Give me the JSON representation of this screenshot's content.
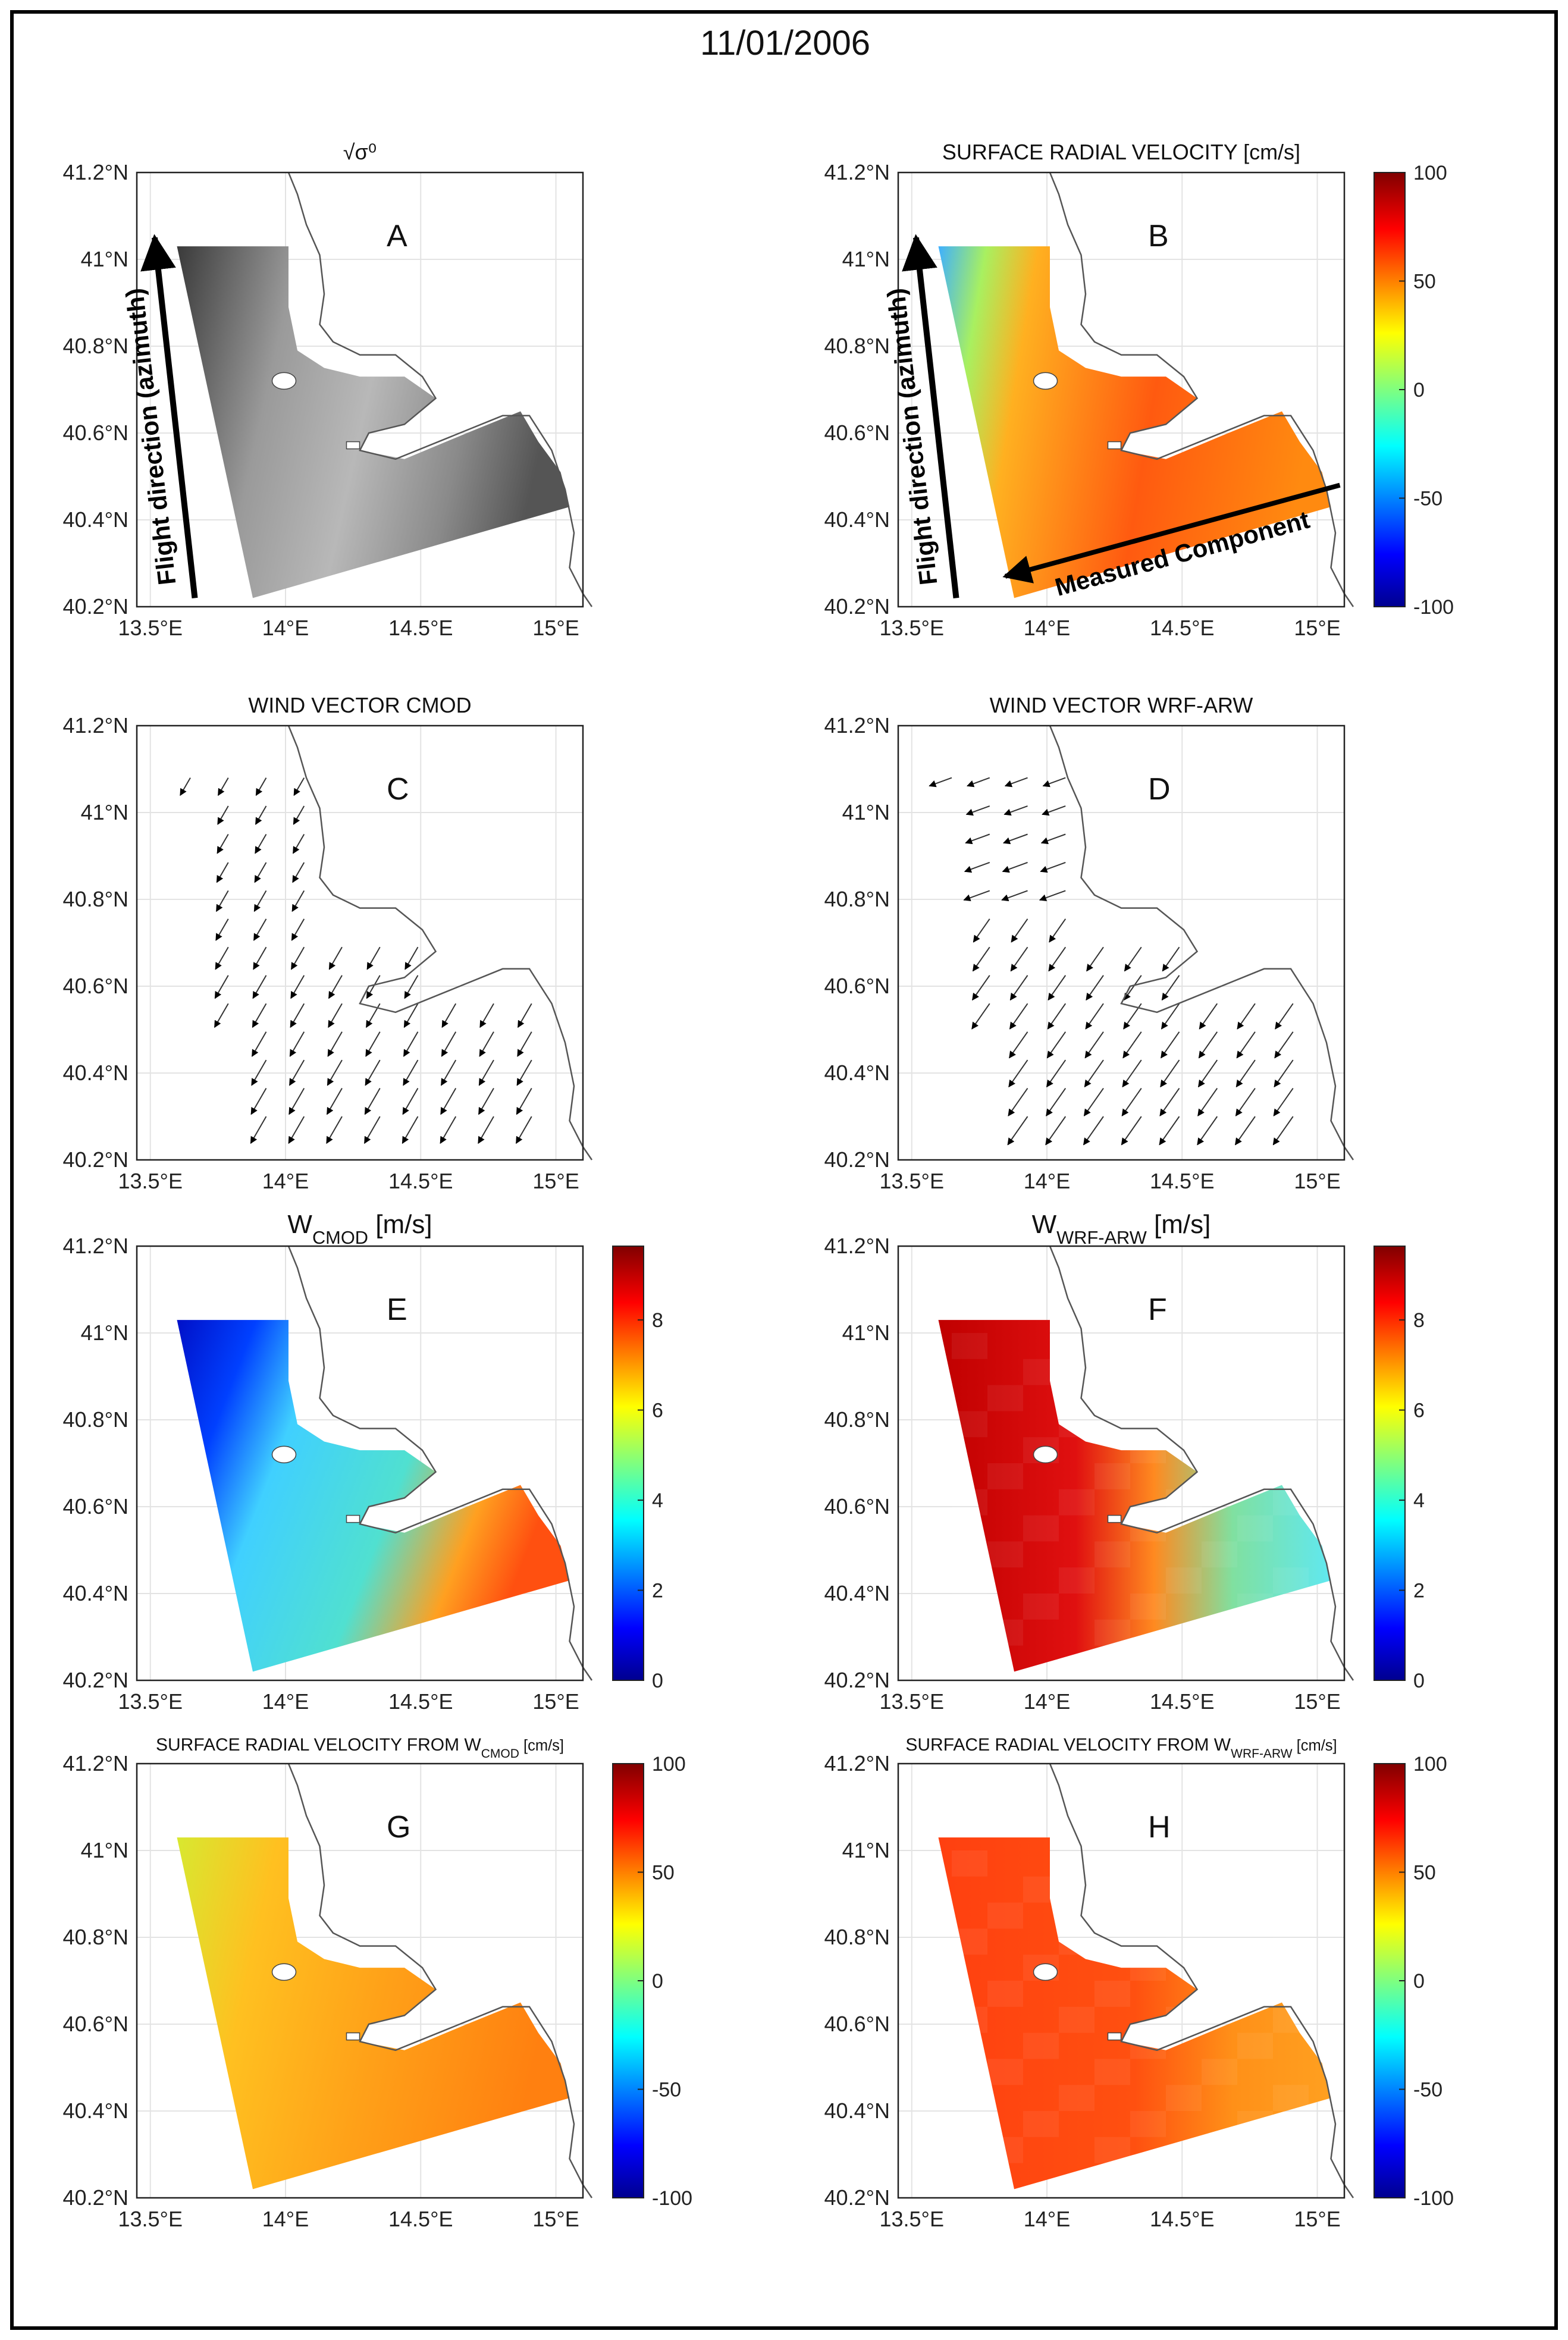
{
  "figure": {
    "date": "11/01/2006",
    "sigma_title": "√σ⁰",
    "flight_label": "Flight direction (azimuth)",
    "measured_label": "Measured Component"
  },
  "chart_data": [
    {
      "id": "A",
      "type": "heatmap",
      "letter": "A",
      "title": "√σ⁰",
      "title_sub": "",
      "title_unit": "",
      "colormap": "gray",
      "xticks": [
        "13.5°E",
        "14°E",
        "14.5°E",
        "15°E"
      ],
      "yticks": [
        "40.2°N",
        "40.4°N",
        "40.6°N",
        "40.8°N",
        "41°N",
        "41.2°N"
      ],
      "xlim": [
        13.45,
        15.1
      ],
      "ylim": [
        40.2,
        41.2
      ]
    },
    {
      "id": "B",
      "type": "heatmap",
      "letter": "B",
      "title": "SURFACE RADIAL VELOCITY [cm/s]",
      "title_sub": "",
      "title_unit": "",
      "colormap": "jet",
      "colorbar": {
        "ticks": [
          "100",
          "50",
          "0",
          "-50",
          "-100"
        ],
        "range": [
          -100,
          100
        ]
      },
      "xticks": [
        "13.5°E",
        "14°E",
        "14.5°E",
        "15°E"
      ],
      "yticks": [
        "40.2°N",
        "40.4°N",
        "40.6°N",
        "40.8°N",
        "41°N",
        "41.2°N"
      ],
      "xlim": [
        13.45,
        15.1
      ],
      "ylim": [
        40.2,
        41.2
      ]
    },
    {
      "id": "C",
      "type": "scatter",
      "letter": "C",
      "title": "WIND VECTOR CMOD",
      "title_sub": "",
      "title_unit": "",
      "xticks": [
        "13.5°E",
        "14°E",
        "14.5°E",
        "15°E"
      ],
      "yticks": [
        "40.2°N",
        "40.4°N",
        "40.6°N",
        "40.8°N",
        "41°N",
        "41.2°N"
      ],
      "xlim": [
        13.45,
        15.1
      ],
      "ylim": [
        40.2,
        41.2
      ]
    },
    {
      "id": "D",
      "type": "scatter",
      "letter": "D",
      "title": "WIND VECTOR WRF-ARW",
      "title_sub": "",
      "title_unit": "",
      "xticks": [
        "13.5°E",
        "14°E",
        "14.5°E",
        "15°E"
      ],
      "yticks": [
        "40.2°N",
        "40.4°N",
        "40.6°N",
        "40.8°N",
        "41°N",
        "41.2°N"
      ],
      "xlim": [
        13.45,
        15.1
      ],
      "ylim": [
        40.2,
        41.2
      ]
    },
    {
      "id": "E",
      "type": "heatmap",
      "letter": "E",
      "title": "W",
      "title_sub": "CMOD",
      "title_unit": " [m/s]",
      "colormap": "jet",
      "colorbar": {
        "ticks": [
          "8",
          "6",
          "4",
          "2",
          "0"
        ],
        "range": [
          0,
          10
        ]
      },
      "xticks": [
        "13.5°E",
        "14°E",
        "14.5°E",
        "15°E"
      ],
      "yticks": [
        "40.2°N",
        "40.4°N",
        "40.6°N",
        "40.8°N",
        "41°N",
        "41.2°N"
      ],
      "xlim": [
        13.45,
        15.1
      ],
      "ylim": [
        40.2,
        41.2
      ]
    },
    {
      "id": "F",
      "type": "heatmap",
      "letter": "F",
      "title": "W",
      "title_sub": "WRF-ARW",
      "title_unit": " [m/s]",
      "colormap": "jet",
      "colorbar": {
        "ticks": [
          "8",
          "6",
          "4",
          "2",
          "0"
        ],
        "range": [
          0,
          10
        ]
      },
      "xticks": [
        "13.5°E",
        "14°E",
        "14.5°E",
        "15°E"
      ],
      "yticks": [
        "40.2°N",
        "40.4°N",
        "40.6°N",
        "40.8°N",
        "41°N",
        "41.2°N"
      ],
      "xlim": [
        13.45,
        15.1
      ],
      "ylim": [
        40.2,
        41.2
      ]
    },
    {
      "id": "G",
      "type": "heatmap",
      "letter": "G",
      "title": "SURFACE RADIAL VELOCITY FROM W",
      "title_sub": "CMOD",
      "title_unit": " [cm/s]",
      "colormap": "jet",
      "colorbar": {
        "ticks": [
          "100",
          "50",
          "0",
          "-50",
          "-100"
        ],
        "range": [
          -100,
          100
        ]
      },
      "xticks": [
        "13.5°E",
        "14°E",
        "14.5°E",
        "15°E"
      ],
      "yticks": [
        "40.2°N",
        "40.4°N",
        "40.6°N",
        "40.8°N",
        "41°N",
        "41.2°N"
      ],
      "xlim": [
        13.45,
        15.1
      ],
      "ylim": [
        40.2,
        41.2
      ]
    },
    {
      "id": "H",
      "type": "heatmap",
      "letter": "H",
      "title": "SURFACE RADIAL VELOCITY FROM W",
      "title_sub": "WRF-ARW",
      "title_unit": " [cm/s]",
      "colormap": "jet",
      "colorbar": {
        "ticks": [
          "100",
          "50",
          "0",
          "-50",
          "-100"
        ],
        "range": [
          -100,
          100
        ]
      },
      "xticks": [
        "13.5°E",
        "14°E",
        "14.5°E",
        "15°E"
      ],
      "yticks": [
        "40.2°N",
        "40.4°N",
        "40.6°N",
        "40.8°N",
        "41°N",
        "41.2°N"
      ],
      "xlim": [
        13.45,
        15.1
      ],
      "ylim": [
        40.2,
        41.2
      ]
    }
  ],
  "colors": {
    "jet_low": "#00008f",
    "jet_high": "#800000",
    "coast": "#555555",
    "grid": "#e3e3e3"
  }
}
